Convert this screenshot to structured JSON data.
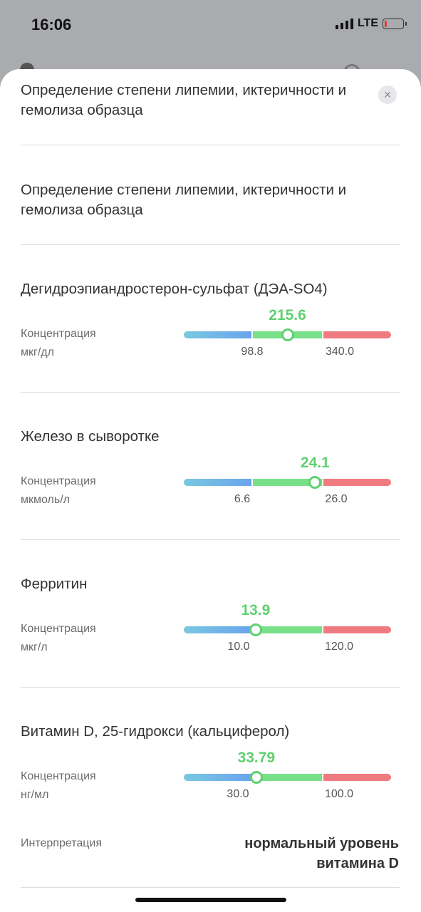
{
  "status_bar": {
    "time": "16:06",
    "network": "LTE"
  },
  "items": [
    {
      "title": "Определение степени липемии, иктеричности и гемолиза образца"
    },
    {
      "title": "Определение степени липемии, иктеричности и гемолиза образца"
    }
  ],
  "tests": [
    {
      "title": "Дегидроэпиандростерон-сульфат (ДЭА-SO4)",
      "label": "Концентрация",
      "unit": "мкг/дл",
      "value": "215.6",
      "low": "98.8",
      "high": "340.0",
      "fraction": 0.5
    },
    {
      "title": "Железо в сыворотке",
      "label": "Концентрация",
      "unit": "мкмоль/л",
      "value": "24.1",
      "low": "6.6",
      "high": "26.0",
      "fraction": 0.9
    },
    {
      "title": "Ферритин",
      "label": "Концентрация",
      "unit": "мкг/л",
      "value": "13.9",
      "low": "10.0",
      "high": "120.0",
      "fraction": 0.04
    },
    {
      "title": "Витамин D, 25-гидрокси (кальциферол)",
      "label": "Концентрация",
      "unit": "нг/мл",
      "value": "33.79",
      "low": "30.0",
      "high": "100.0",
      "fraction": 0.05
    }
  ],
  "interpretation": {
    "label": "Интерпретация",
    "value": "нормальный уровень витамина D"
  },
  "colors": {
    "low": "#6aa4ee",
    "normal": "#79e08a",
    "high": "#ef7b80",
    "marker": "#5fd070"
  }
}
